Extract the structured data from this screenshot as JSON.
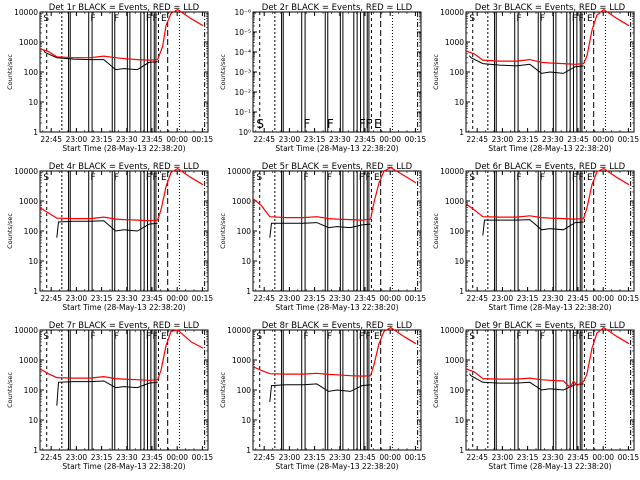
{
  "figure": {
    "colors": {
      "events": "#000000",
      "lld": "#ff0000",
      "background": "#ffffff"
    }
  },
  "chart_data": [
    {
      "type": "line",
      "title": "Det 1r BLACK = Events, RED = LLD",
      "xlabel": "Start Time (28-May-13 22:38:20)",
      "ylabel": "Counts/sec",
      "log_y": true,
      "ylim": [
        1,
        10000
      ],
      "ytick_labels": [
        "1",
        "10",
        "100",
        "1000",
        "10000"
      ],
      "xtick_labels": [
        "22:45",
        "23:00",
        "23:15",
        "23:30",
        "23:45",
        "00:00",
        "00:15"
      ],
      "xlim_min": [
        0,
        100
      ],
      "xtick_min": [
        6.667,
        21.667,
        36.667,
        51.667,
        66.667,
        81.667,
        96.667
      ],
      "markers": [
        {
          "x": 2,
          "label": "S"
        },
        {
          "x": 30,
          "label": "F"
        },
        {
          "x": 44,
          "label": "F"
        },
        {
          "x": 63,
          "label": "F"
        },
        {
          "x": 67,
          "label": "F"
        },
        {
          "x": 72,
          "label": "E"
        }
      ],
      "series": [
        {
          "name": "BLACK = Events",
          "x": [
            2,
            3,
            10,
            20,
            30,
            38,
            45,
            50,
            58,
            65,
            70
          ],
          "y": [
            550,
            450,
            300,
            270,
            260,
            260,
            120,
            130,
            120,
            210,
            220
          ]
        },
        {
          "name": "RED = LLD",
          "x": [
            0,
            5,
            10,
            20,
            30,
            38,
            45,
            50,
            58,
            65,
            70,
            73,
            75,
            78,
            82,
            90,
            97
          ],
          "y": [
            600,
            480,
            320,
            300,
            300,
            340,
            300,
            280,
            260,
            250,
            260,
            700,
            3500,
            9000,
            12000,
            6000,
            3500
          ]
        }
      ]
    },
    {
      "type": "line",
      "title": "Det 2r BLACK = Events, RED = LLD",
      "xlabel": "Start Time (28-May-13 22:38:20)",
      "ylabel": "Counts/sec",
      "log_y": true,
      "ylim": [
        1,
        1e-06
      ],
      "ytick_labels": [
        "10⁰",
        "10⁻¹",
        "10⁻²",
        "10⁻³",
        "10⁻⁴",
        "10⁻⁵",
        "10⁻⁶"
      ],
      "xtick_labels": [
        "22:45",
        "23:00",
        "23:15",
        "23:30",
        "23:45",
        "00:00",
        "00:15"
      ],
      "xlim_min": [
        0,
        100
      ],
      "xtick_min": [
        6.667,
        21.667,
        36.667,
        51.667,
        66.667,
        81.667,
        96.667
      ],
      "markers": [
        {
          "x": 2,
          "label": "S"
        },
        {
          "x": 30,
          "label": "F"
        },
        {
          "x": 44,
          "label": "F"
        },
        {
          "x": 63,
          "label": "F"
        },
        {
          "x": 67,
          "label": "F"
        },
        {
          "x": 72,
          "label": "E"
        }
      ],
      "series": []
    },
    {
      "type": "line",
      "title": "Det 3r BLACK = Events, RED = LLD",
      "xlabel": "Start Time (28-May-13 22:38:20)",
      "ylabel": "Counts/sec",
      "log_y": true,
      "ylim": [
        1,
        10000
      ],
      "ytick_labels": [
        "1",
        "10",
        "100",
        "1000",
        "10000"
      ],
      "xtick_labels": [
        "22:45",
        "23:00",
        "23:15",
        "23:30",
        "23:45",
        "00:00",
        "00:15"
      ],
      "xlim_min": [
        0,
        100
      ],
      "xtick_min": [
        6.667,
        21.667,
        36.667,
        51.667,
        66.667,
        81.667,
        96.667
      ],
      "markers": [
        {
          "x": 2,
          "label": "S"
        },
        {
          "x": 30,
          "label": "F"
        },
        {
          "x": 44,
          "label": "F"
        },
        {
          "x": 63,
          "label": "F"
        },
        {
          "x": 67,
          "label": "F"
        },
        {
          "x": 72,
          "label": "E"
        }
      ],
      "series": [
        {
          "name": "BLACK = Events",
          "x": [
            2,
            3,
            10,
            20,
            30,
            38,
            45,
            50,
            58,
            65,
            70
          ],
          "y": [
            350,
            300,
            190,
            170,
            160,
            180,
            90,
            100,
            90,
            150,
            160
          ]
        },
        {
          "name": "RED = LLD",
          "x": [
            0,
            5,
            10,
            20,
            30,
            38,
            45,
            50,
            58,
            65,
            70,
            72,
            75,
            78,
            82,
            90,
            97
          ],
          "y": [
            500,
            400,
            250,
            230,
            230,
            260,
            210,
            200,
            190,
            180,
            190,
            350,
            2500,
            8000,
            12000,
            6000,
            3500
          ]
        }
      ]
    },
    {
      "type": "line",
      "title": "Det 4r BLACK = Events, RED = LLD",
      "xlabel": "Start Time (28-May-13 22:38:20)",
      "ylabel": "Counts/sec",
      "log_y": true,
      "ylim": [
        1,
        10000
      ],
      "ytick_labels": [
        "1",
        "10",
        "100",
        "1000",
        "10000"
      ],
      "xtick_labels": [
        "22:45",
        "23:00",
        "23:15",
        "23:30",
        "23:45",
        "00:00",
        "00:15"
      ],
      "xlim_min": [
        0,
        100
      ],
      "xtick_min": [
        6.667,
        21.667,
        36.667,
        51.667,
        66.667,
        81.667,
        96.667
      ],
      "markers": [
        {
          "x": 2,
          "label": "S"
        },
        {
          "x": 30,
          "label": "F"
        },
        {
          "x": 44,
          "label": "F"
        },
        {
          "x": 63,
          "label": "F"
        },
        {
          "x": 67,
          "label": "F"
        },
        {
          "x": 72,
          "label": "E"
        }
      ],
      "series": [
        {
          "name": "BLACK = Events",
          "x": [
            10,
            11,
            20,
            30,
            38,
            45,
            50,
            58,
            65,
            70
          ],
          "y": [
            60,
            200,
            210,
            210,
            220,
            100,
            110,
            100,
            170,
            180
          ]
        },
        {
          "name": "RED = LLD",
          "x": [
            0,
            5,
            10,
            20,
            30,
            38,
            45,
            50,
            58,
            65,
            70,
            72,
            75,
            78,
            82,
            90,
            97
          ],
          "y": [
            600,
            400,
            270,
            260,
            260,
            290,
            250,
            240,
            230,
            220,
            230,
            500,
            3000,
            9000,
            12000,
            6000,
            3500
          ]
        }
      ]
    },
    {
      "type": "line",
      "title": "Det 5r BLACK = Events, RED = LLD",
      "xlabel": "Start Time (28-May-13 22:38:20)",
      "ylabel": "Counts/sec",
      "log_y": true,
      "ylim": [
        1,
        10000
      ],
      "ytick_labels": [
        "1",
        "10",
        "100",
        "1000",
        "10000"
      ],
      "xtick_labels": [
        "22:45",
        "23:00",
        "23:15",
        "23:30",
        "23:45",
        "00:00",
        "00:15"
      ],
      "xlim_min": [
        0,
        100
      ],
      "xtick_min": [
        6.667,
        21.667,
        36.667,
        51.667,
        66.667,
        81.667,
        96.667
      ],
      "markers": [
        {
          "x": 2,
          "label": "S"
        },
        {
          "x": 30,
          "label": "F"
        },
        {
          "x": 44,
          "label": "F"
        },
        {
          "x": 63,
          "label": "F"
        },
        {
          "x": 67,
          "label": "F"
        },
        {
          "x": 72,
          "label": "E"
        }
      ],
      "series": [
        {
          "name": "BLACK = Events",
          "x": [
            10,
            11,
            20,
            30,
            38,
            45,
            50,
            58,
            65,
            70
          ],
          "y": [
            60,
            180,
            180,
            180,
            190,
            130,
            140,
            130,
            160,
            170
          ]
        },
        {
          "name": "RED = LLD",
          "x": [
            0,
            5,
            10,
            20,
            30,
            38,
            45,
            50,
            58,
            65,
            70,
            72,
            75,
            78,
            82,
            90,
            97
          ],
          "y": [
            1200,
            700,
            300,
            280,
            280,
            300,
            260,
            250,
            240,
            230,
            250,
            900,
            4000,
            10000,
            13000,
            7000,
            4000
          ]
        }
      ]
    },
    {
      "type": "line",
      "title": "Det 6r BLACK = Events, RED = LLD",
      "xlabel": "Start Time (28-May-13 22:38:20)",
      "ylabel": "Counts/sec",
      "log_y": true,
      "ylim": [
        1,
        10000
      ],
      "ytick_labels": [
        "1",
        "10",
        "100",
        "1000",
        "10000"
      ],
      "xtick_labels": [
        "22:45",
        "23:00",
        "23:15",
        "23:30",
        "23:45",
        "00:00",
        "00:15"
      ],
      "xlim_min": [
        0,
        100
      ],
      "xtick_min": [
        6.667,
        21.667,
        36.667,
        51.667,
        66.667,
        81.667,
        96.667
      ],
      "markers": [
        {
          "x": 2,
          "label": "S"
        },
        {
          "x": 30,
          "label": "F"
        },
        {
          "x": 44,
          "label": "F"
        },
        {
          "x": 63,
          "label": "F"
        },
        {
          "x": 67,
          "label": "F"
        },
        {
          "x": 72,
          "label": "E"
        }
      ],
      "series": [
        {
          "name": "BLACK = Events",
          "x": [
            10,
            11,
            20,
            30,
            38,
            45,
            50,
            58,
            65,
            70
          ],
          "y": [
            70,
            230,
            230,
            230,
            240,
            110,
            120,
            110,
            190,
            200
          ]
        },
        {
          "name": "RED = LLD",
          "x": [
            0,
            5,
            10,
            20,
            30,
            38,
            45,
            50,
            58,
            65,
            70,
            72,
            75,
            78,
            82,
            90,
            97
          ],
          "y": [
            800,
            500,
            300,
            290,
            290,
            320,
            280,
            270,
            260,
            250,
            260,
            600,
            3500,
            9500,
            12000,
            6000,
            3500
          ]
        }
      ]
    },
    {
      "type": "line",
      "title": "Det 7r BLACK = Events, RED = LLD",
      "xlabel": "Start Time (28-May-13 22:38:20)",
      "ylabel": "Counts/sec",
      "log_y": true,
      "ylim": [
        1,
        10000
      ],
      "ytick_labels": [
        "1",
        "10",
        "100",
        "1000",
        "10000"
      ],
      "xtick_labels": [
        "22:45",
        "23:00",
        "23:15",
        "23:30",
        "23:45",
        "00:00",
        "00:15"
      ],
      "xlim_min": [
        0,
        100
      ],
      "xtick_min": [
        6.667,
        21.667,
        36.667,
        51.667,
        66.667,
        81.667,
        96.667
      ],
      "markers": [
        {
          "x": 2,
          "label": "S"
        },
        {
          "x": 30,
          "label": "F"
        },
        {
          "x": 44,
          "label": "F"
        },
        {
          "x": 63,
          "label": "F"
        },
        {
          "x": 67,
          "label": "F"
        },
        {
          "x": 72,
          "label": "E"
        }
      ],
      "series": [
        {
          "name": "BLACK = Events",
          "x": [
            10,
            11,
            20,
            30,
            38,
            45,
            50,
            58,
            65,
            70
          ],
          "y": [
            30,
            180,
            190,
            190,
            200,
            120,
            130,
            120,
            170,
            180
          ]
        },
        {
          "name": "RED = LLD",
          "x": [
            0,
            5,
            10,
            20,
            30,
            38,
            45,
            50,
            58,
            65,
            70,
            72,
            75,
            78,
            82,
            90,
            97
          ],
          "y": [
            500,
            350,
            260,
            250,
            250,
            280,
            240,
            230,
            220,
            210,
            220,
            450,
            3000,
            9000,
            10000,
            4000,
            2500
          ]
        }
      ]
    },
    {
      "type": "line",
      "title": "Det 8r BLACK = Events, RED = LLD",
      "xlabel": "Start Time (28-May-13 22:38:20)",
      "ylabel": "Counts/sec",
      "log_y": true,
      "ylim": [
        1,
        10000
      ],
      "ytick_labels": [
        "1",
        "10",
        "100",
        "1000",
        "10000"
      ],
      "xtick_labels": [
        "22:45",
        "23:00",
        "23:15",
        "23:30",
        "23:45",
        "00:00",
        "00:15"
      ],
      "xlim_min": [
        0,
        100
      ],
      "xtick_min": [
        6.667,
        21.667,
        36.667,
        51.667,
        66.667,
        81.667,
        96.667
      ],
      "markers": [
        {
          "x": 2,
          "label": "S"
        },
        {
          "x": 30,
          "label": "F"
        },
        {
          "x": 44,
          "label": "F"
        },
        {
          "x": 63,
          "label": "F"
        },
        {
          "x": 67,
          "label": "F"
        },
        {
          "x": 72,
          "label": "E"
        }
      ],
      "series": [
        {
          "name": "BLACK = Events",
          "x": [
            10,
            11,
            20,
            30,
            38,
            45,
            50,
            58,
            65,
            70
          ],
          "y": [
            40,
            140,
            150,
            150,
            160,
            90,
            100,
            90,
            140,
            150
          ]
        },
        {
          "name": "RED = LLD",
          "x": [
            0,
            5,
            10,
            20,
            30,
            38,
            45,
            50,
            58,
            65,
            70,
            72,
            75,
            78,
            82,
            90,
            97
          ],
          "y": [
            600,
            450,
            350,
            340,
            340,
            360,
            330,
            320,
            300,
            290,
            300,
            700,
            3500,
            9000,
            12000,
            6000,
            3500
          ]
        }
      ]
    },
    {
      "type": "line",
      "title": "Det 9r BLACK = Events, RED = LLD",
      "xlabel": "Start Time (28-May-13 22:38:20)",
      "ylabel": "Counts/sec",
      "log_y": true,
      "ylim": [
        1,
        10000
      ],
      "ytick_labels": [
        "1",
        "10",
        "100",
        "1000",
        "10000"
      ],
      "xtick_labels": [
        "22:45",
        "23:00",
        "23:15",
        "23:30",
        "23:45",
        "00:00",
        "00:15"
      ],
      "xlim_min": [
        0,
        100
      ],
      "xtick_min": [
        6.667,
        21.667,
        36.667,
        51.667,
        66.667,
        81.667,
        96.667
      ],
      "markers": [
        {
          "x": 2,
          "label": "S"
        },
        {
          "x": 30,
          "label": "F"
        },
        {
          "x": 44,
          "label": "F"
        },
        {
          "x": 63,
          "label": "F"
        },
        {
          "x": 67,
          "label": "F"
        },
        {
          "x": 72,
          "label": "E"
        }
      ],
      "series": [
        {
          "name": "BLACK = Events",
          "x": [
            2,
            3,
            10,
            20,
            30,
            38,
            45,
            50,
            58,
            65,
            70
          ],
          "y": [
            350,
            300,
            180,
            170,
            170,
            180,
            100,
            110,
            100,
            150,
            160
          ]
        },
        {
          "name": "RED = LLD",
          "x": [
            0,
            5,
            10,
            20,
            30,
            38,
            45,
            50,
            58,
            62,
            64,
            66,
            70,
            72,
            75,
            78,
            82,
            90,
            97
          ],
          "y": [
            500,
            400,
            240,
            230,
            230,
            250,
            220,
            210,
            200,
            120,
            200,
            140,
            190,
            350,
            2500,
            8000,
            12000,
            6000,
            3500
          ]
        }
      ]
    }
  ]
}
